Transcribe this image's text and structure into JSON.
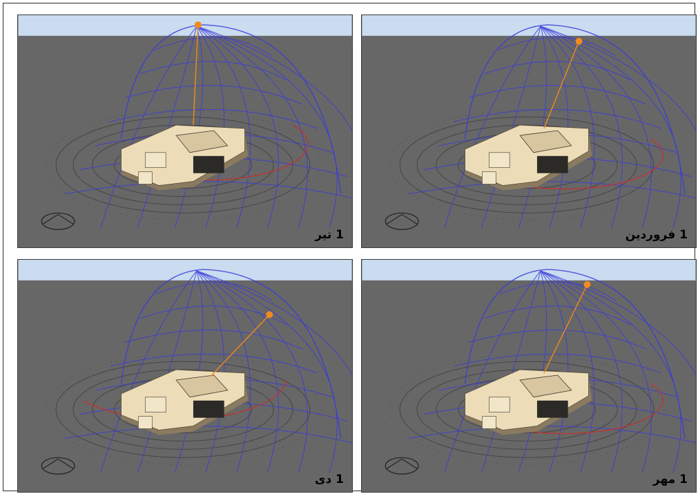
{
  "panels": [
    {
      "label": "1 تیر",
      "sun": "summer",
      "sun_color": "#f28a1e"
    },
    {
      "label": "1 فروردین",
      "sun": "spring",
      "sun_color": "#f28a1e"
    },
    {
      "label": "1 دی",
      "sun": "winter",
      "sun_color": "#f28a1e"
    },
    {
      "label": "1 مهر",
      "sun": "autumn",
      "sun_color": "#f28a1e"
    }
  ],
  "colors": {
    "sky": "#c9dcf0",
    "ground": "#676767",
    "dome_lines": "#3b3bd9",
    "ground_rings": "#454545",
    "sun_path": "#c8302a",
    "building": "#ecdcb8",
    "building_shadow": "#8a7b60"
  }
}
